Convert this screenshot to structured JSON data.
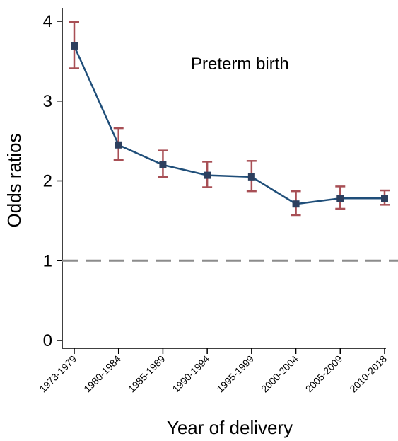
{
  "chart_data": {
    "type": "line",
    "title": "",
    "annotation": "Preterm birth",
    "xlabel": "Year of delivery",
    "ylabel": "Odds ratios",
    "categories": [
      "1973-1979",
      "1980-1984",
      "1985-1989",
      "1990-1994",
      "1995-1999",
      "2000-2004",
      "2005-2009",
      "2010-2018"
    ],
    "series": [
      {
        "values": [
          3.69,
          2.45,
          2.2,
          2.07,
          2.05,
          1.71,
          1.78,
          1.78
        ],
        "ci_lower": [
          3.41,
          2.26,
          2.05,
          1.92,
          1.87,
          1.57,
          1.65,
          1.7
        ],
        "ci_upper": [
          3.99,
          2.66,
          2.38,
          2.24,
          2.25,
          1.87,
          1.93,
          1.88
        ]
      }
    ],
    "reference_line": {
      "value": 1,
      "style": "dashed"
    },
    "ylim": [
      0,
      4
    ],
    "yticks": [
      0,
      1,
      2,
      3,
      4
    ],
    "grid": false,
    "colors": {
      "line": "#1f4e79",
      "marker": "#2d3f5e",
      "ci": "#a84f55",
      "reference": "#8c8c8c",
      "axis": "#000000"
    }
  }
}
